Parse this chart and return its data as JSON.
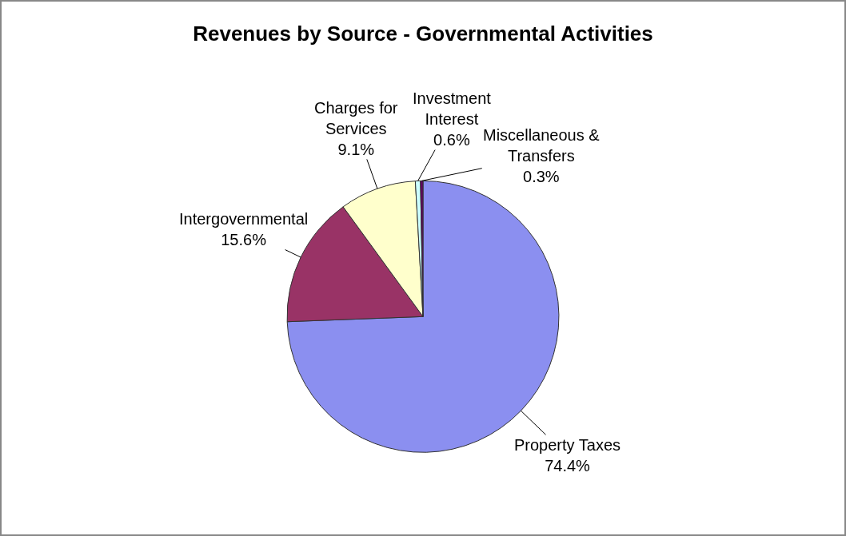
{
  "chart_data": {
    "type": "pie",
    "title": "Revenues by Source - Governmental Activities",
    "categories": [
      "Property Taxes",
      "Intergovernmental",
      "Charges for Services",
      "Investment Interest",
      "Miscellaneous & Transfers"
    ],
    "values": [
      74.4,
      15.6,
      9.1,
      0.6,
      0.3
    ],
    "value_labels": [
      "74.4%",
      "15.6%",
      "9.1%",
      "0.6%",
      "0.3%"
    ],
    "colors": [
      "#8b8ff0",
      "#993366",
      "#ffffcc",
      "#ccffff",
      "#660066"
    ],
    "legend": false
  }
}
